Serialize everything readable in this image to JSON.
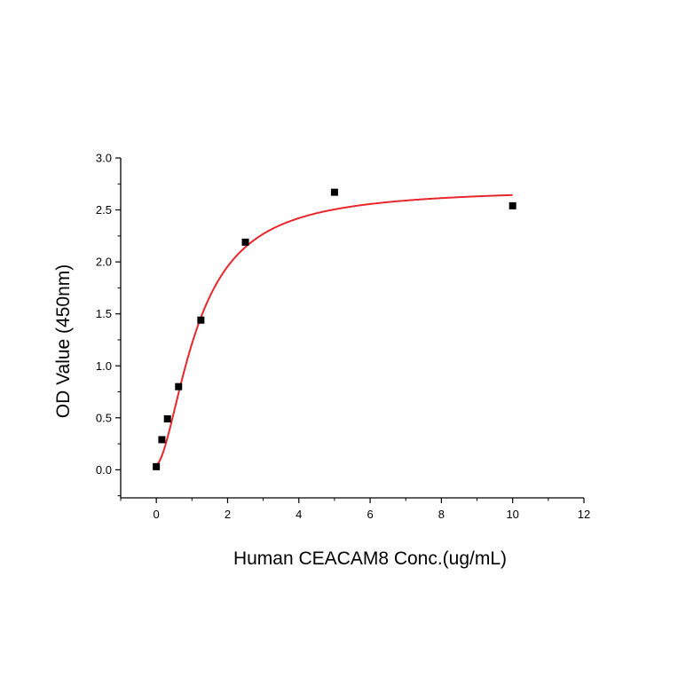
{
  "chart_data": {
    "type": "scatter",
    "title": "",
    "xlabel": "Human CEACAM8 Conc.(ug/mL)",
    "ylabel": "OD Value (450nm)",
    "xlim": [
      -1,
      12
    ],
    "ylim": [
      -0.27,
      3.0
    ],
    "x_ticks": [
      0,
      2,
      4,
      6,
      8,
      10,
      12
    ],
    "x_tick_labels": [
      "0",
      "2",
      "4",
      "6",
      "8",
      "10",
      "12"
    ],
    "y_ticks": [
      0.0,
      0.5,
      1.0,
      1.5,
      2.0,
      2.5,
      3.0
    ],
    "y_tick_labels": [
      "0.0",
      "0.5",
      "1.0",
      "1.5",
      "2.0",
      "2.5",
      "3.0"
    ],
    "grid": false,
    "legend": "none",
    "points": {
      "x": [
        0,
        0.156,
        0.3125,
        0.625,
        1.25,
        2.5,
        5,
        10
      ],
      "y": [
        0.03,
        0.29,
        0.49,
        0.8,
        1.44,
        2.19,
        2.67,
        2.54
      ],
      "color": "#000000",
      "marker": "square"
    },
    "fit_curve": {
      "model": "4PL",
      "bottom": 0.05,
      "top": 2.71,
      "ec50": 1.16,
      "hill": 1.7,
      "x_range": [
        0,
        10
      ],
      "color": "#e8272d"
    }
  }
}
